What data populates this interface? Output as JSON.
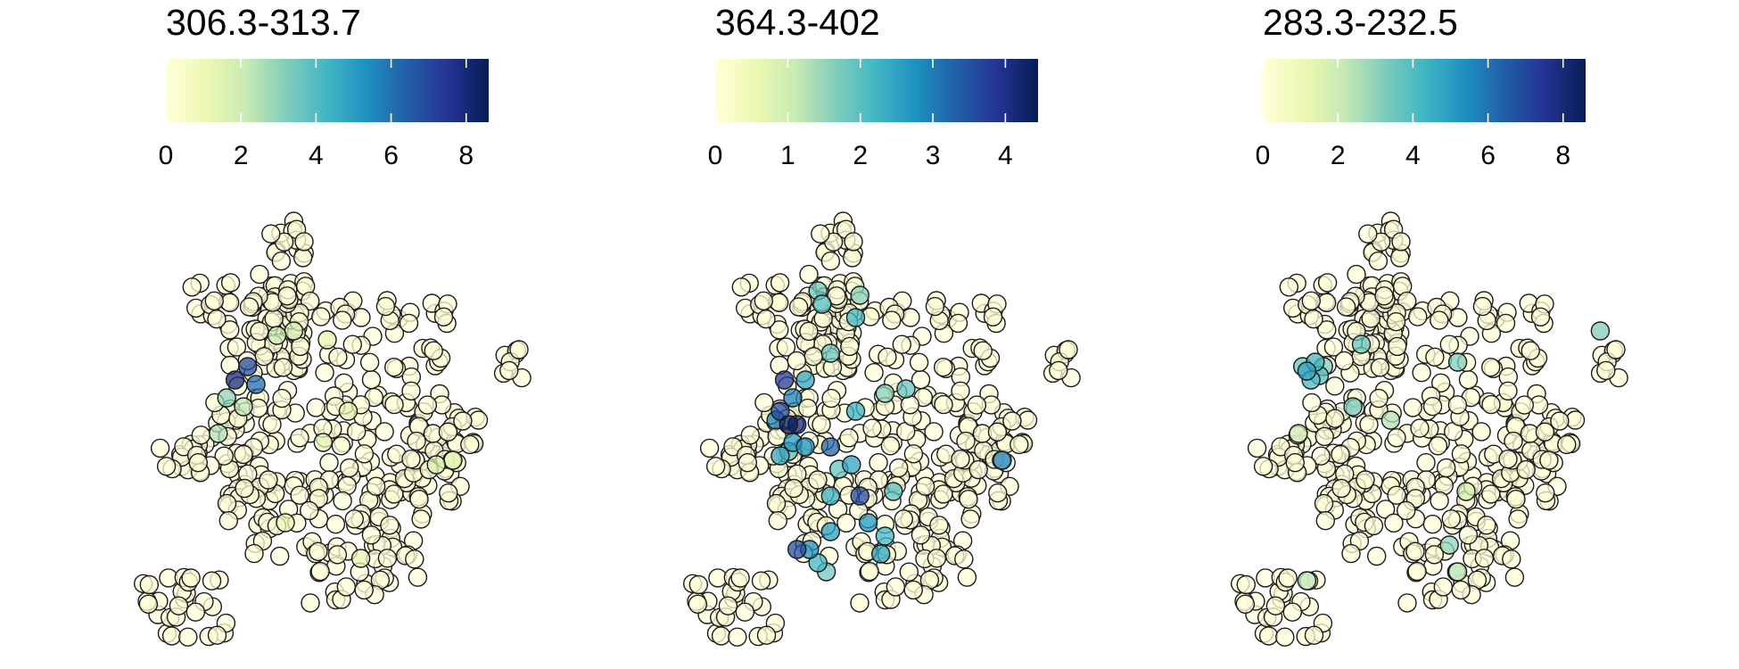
{
  "palette": [
    "#ffffd9",
    "#edf8b1",
    "#c7e9b4",
    "#7fcdbb",
    "#41b6c4",
    "#1d91c0",
    "#225ea8",
    "#253494",
    "#081d58"
  ],
  "point_style": {
    "stroke": "#1b1b1b",
    "fill_opacity": 0.75
  },
  "chart_data": [
    {
      "type": "scatter",
      "title": "306.3-313.7",
      "colorbar": {
        "ticks": [
          0,
          2,
          4,
          6,
          8
        ],
        "max": 8.6
      },
      "highlights": [
        {
          "p": [
            28,
            38
          ],
          "v": 8.0
        },
        {
          "p": [
            31,
            35
          ],
          "v": 7.0
        },
        {
          "p": [
            33,
            39
          ],
          "v": 6.2
        },
        {
          "p": [
            26,
            42
          ],
          "v": 3.0
        },
        {
          "p": [
            24,
            50
          ],
          "v": 2.5
        },
        {
          "p": [
            30,
            44
          ],
          "v": 2.2
        },
        {
          "p": [
            38,
            28
          ],
          "v": 2.0
        },
        {
          "p": [
            42,
            27
          ],
          "v": 1.8
        },
        {
          "p": [
            76,
            57
          ],
          "v": 1.6
        },
        {
          "p": [
            80,
            56
          ],
          "v": 1.4
        },
        {
          "p": [
            49,
            52
          ],
          "v": 1.4
        },
        {
          "p": [
            55,
            45
          ],
          "v": 1.3
        },
        {
          "p": [
            58,
            78
          ],
          "v": 1.3
        },
        {
          "p": [
            40,
            70
          ],
          "v": 1.2
        },
        {
          "p": [
            50,
            29
          ],
          "v": 1.2
        }
      ]
    },
    {
      "type": "scatter",
      "title": "364.3-402",
      "colorbar": {
        "ticks": [
          0,
          1,
          2,
          3,
          4
        ],
        "max": 4.45
      },
      "highlights": [
        {
          "p": [
            29,
            48
          ],
          "v": 4.4
        },
        {
          "p": [
            31,
            48
          ],
          "v": 4.2
        },
        {
          "p": [
            28,
            38
          ],
          "v": 3.8
        },
        {
          "p": [
            27,
            45
          ],
          "v": 3.6
        },
        {
          "p": [
            39,
            53
          ],
          "v": 3.3
        },
        {
          "p": [
            46,
            64
          ],
          "v": 3.6
        },
        {
          "p": [
            30,
            42
          ],
          "v": 3.0
        },
        {
          "p": [
            26,
            47
          ],
          "v": 3.0
        },
        {
          "p": [
            33,
            53
          ],
          "v": 2.8
        },
        {
          "p": [
            30,
            52
          ],
          "v": 2.6
        },
        {
          "p": [
            44,
            57
          ],
          "v": 2.5
        },
        {
          "p": [
            45,
            45
          ],
          "v": 2.3
        },
        {
          "p": [
            27,
            55
          ],
          "v": 2.4
        },
        {
          "p": [
            33,
            38
          ],
          "v": 2.5
        },
        {
          "p": [
            39,
            64
          ],
          "v": 2.3
        },
        {
          "p": [
            48,
            70
          ],
          "v": 2.7
        },
        {
          "p": [
            39,
            72
          ],
          "v": 2.6
        },
        {
          "p": [
            31,
            76
          ],
          "v": 3.6
        },
        {
          "p": [
            34,
            76
          ],
          "v": 2.8
        },
        {
          "p": [
            36,
            79
          ],
          "v": 2.2
        },
        {
          "p": [
            38,
            81
          ],
          "v": 1.8
        },
        {
          "p": [
            29,
            54
          ],
          "v": 2.0
        },
        {
          "p": [
            41,
            58
          ],
          "v": 1.9
        },
        {
          "p": [
            51,
            77
          ],
          "v": 2.5
        },
        {
          "p": [
            52,
            73
          ],
          "v": 2.2
        },
        {
          "p": [
            54,
            63
          ],
          "v": 2.0
        },
        {
          "p": [
            80,
            56
          ],
          "v": 3.0
        },
        {
          "p": [
            39,
            32
          ],
          "v": 1.8
        },
        {
          "p": [
            46,
            19
          ],
          "v": 1.6
        },
        {
          "p": [
            45,
            24
          ],
          "v": 2.2
        },
        {
          "p": [
            36,
            18
          ],
          "v": 1.8
        },
        {
          "p": [
            37,
            21
          ],
          "v": 2.0
        },
        {
          "p": [
            57,
            40
          ],
          "v": 1.9
        },
        {
          "p": [
            52,
            41
          ],
          "v": 1.6
        }
      ]
    },
    {
      "type": "scatter",
      "title": "283.3-232.5",
      "colorbar": {
        "ticks": [
          0,
          2,
          4,
          6,
          8
        ],
        "max": 8.6
      },
      "highlights": [
        {
          "p": [
            22,
            36
          ],
          "v": 4.8
        },
        {
          "p": [
            24,
            34
          ],
          "v": 4.3
        },
        {
          "p": [
            23,
            38
          ],
          "v": 4.1
        },
        {
          "p": [
            25,
            37
          ],
          "v": 3.9
        },
        {
          "p": [
            21,
            35
          ],
          "v": 3.6
        },
        {
          "p": [
            26,
            35
          ],
          "v": 3.2
        },
        {
          "p": [
            35,
            30
          ],
          "v": 3.6
        },
        {
          "p": [
            33,
            44
          ],
          "v": 3.4
        },
        {
          "p": [
            58,
            34
          ],
          "v": 3.2
        },
        {
          "p": [
            42,
            47
          ],
          "v": 2.5
        },
        {
          "p": [
            92,
            27
          ],
          "v": 3.2
        },
        {
          "p": [
            56,
            75
          ],
          "v": 3.0
        },
        {
          "p": [
            58,
            81
          ],
          "v": 2.4
        },
        {
          "p": [
            22,
            83
          ],
          "v": 2.3
        },
        {
          "p": [
            20,
            50
          ],
          "v": 2.0
        },
        {
          "p": [
            60,
            63
          ],
          "v": 1.8
        }
      ]
    }
  ]
}
